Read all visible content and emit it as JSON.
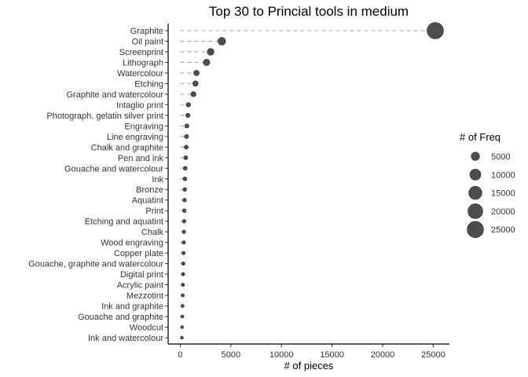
{
  "chart_data": {
    "type": "scatter",
    "title": "Top 30 to Princial  tools in medium",
    "xlabel": "# of pieces",
    "ylabel": "",
    "xlim": [
      -1200,
      26600
    ],
    "x_ticks": [
      0,
      5000,
      10000,
      15000,
      20000,
      25000
    ],
    "grid": false,
    "categories": [
      "Graphite",
      "Oil paint",
      "Screenprint",
      "Lithograph",
      "Watercolour",
      "Etching",
      "Graphite and watercolour",
      "Intaglio print",
      "Photograph, gelatin silver print",
      "Engraving",
      "Line engraving",
      "Chalk and graphite",
      "Pen and ink",
      "Gouache and watercolour",
      "Ink",
      "Bronze",
      "Aquatint",
      "Print",
      "Etching and aquatint",
      "Chalk",
      "Wood engraving",
      "Copper plate",
      "Gouache, graphite and watercolour",
      "Digital print",
      "Acrylic paint",
      "Mezzotint",
      "Ink and graphite",
      "Gouache and graphite",
      "Woodcut",
      "Ink and watercolour"
    ],
    "values": [
      25200,
      4100,
      3000,
      2600,
      1600,
      1500,
      1300,
      800,
      750,
      650,
      620,
      590,
      540,
      490,
      460,
      440,
      420,
      400,
      380,
      360,
      340,
      320,
      300,
      280,
      260,
      240,
      220,
      200,
      180,
      160
    ],
    "point_color": "#4d4d4d",
    "segment_color": "#a6a6a6",
    "legend": {
      "title": "# of Freq",
      "placement": "right",
      "entries": [
        "5000",
        "10000",
        "15000",
        "20000",
        "25000"
      ]
    }
  }
}
